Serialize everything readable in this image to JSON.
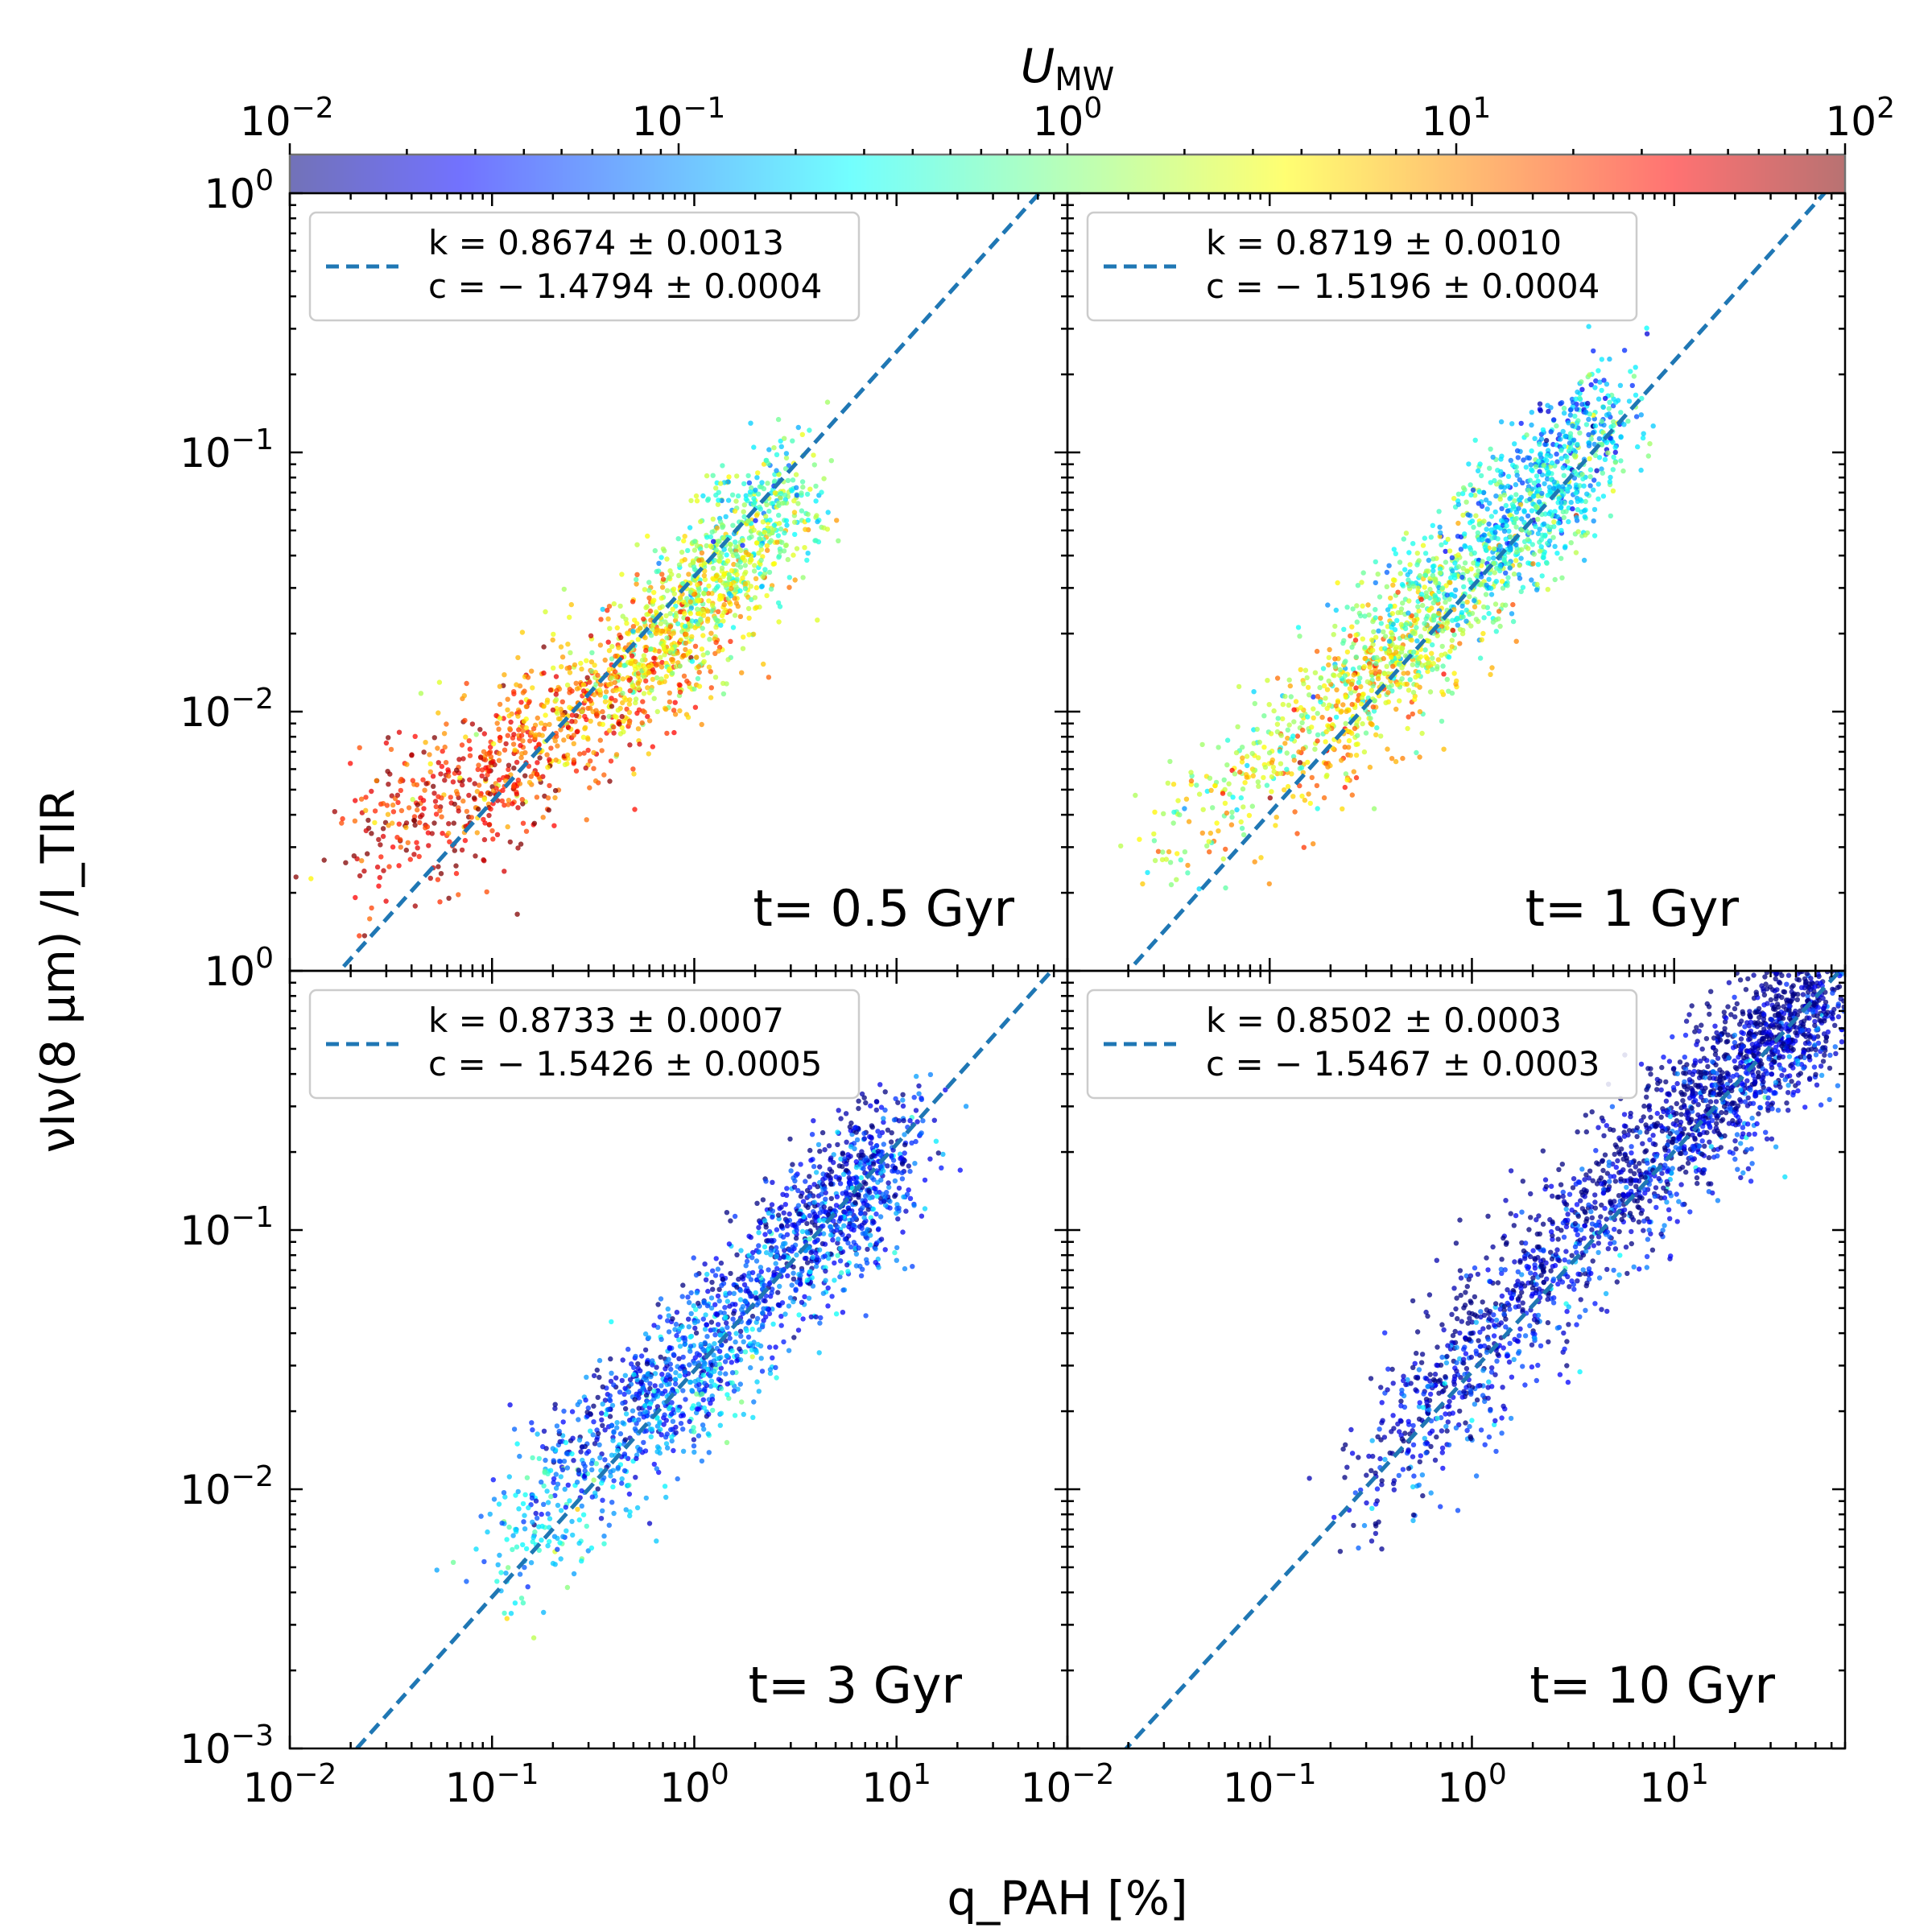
{
  "chart_data": {
    "type": "scatter",
    "layout": "2x2 grid, shared axes, log-log",
    "xlabel": "q_PAH [%]",
    "ylabel": "νIν(8 μm) /I_TIR",
    "xscale": "log",
    "yscale": "log",
    "xlim": [
      0.01,
      70
    ],
    "ylim": [
      0.001,
      1
    ],
    "xticks": [
      {
        "value": 0.01,
        "base": "10",
        "exp": "−2"
      },
      {
        "value": 0.1,
        "base": "10",
        "exp": "−1"
      },
      {
        "value": 1,
        "base": "10",
        "exp": "0"
      },
      {
        "value": 10,
        "base": "10",
        "exp": "1"
      }
    ],
    "yticks": [
      {
        "value": 0.001,
        "base": "10",
        "exp": "−3"
      },
      {
        "value": 0.01,
        "base": "10",
        "exp": "−2"
      },
      {
        "value": 0.1,
        "base": "10",
        "exp": "−1"
      },
      {
        "value": 1,
        "base": "10",
        "exp": "0"
      }
    ],
    "colorbar": {
      "label": "U_MW",
      "label_base": "U",
      "label_sub": "MW",
      "scale": "log",
      "range": [
        0.01,
        100
      ],
      "colormap": "jet",
      "ticks": [
        {
          "value": 0.01,
          "base": "10",
          "exp": "−2"
        },
        {
          "value": 0.1,
          "base": "10",
          "exp": "−1"
        },
        {
          "value": 1,
          "base": "10",
          "exp": "0"
        },
        {
          "value": 10,
          "base": "10",
          "exp": "1"
        },
        {
          "value": 100,
          "base": "10",
          "exp": "2"
        }
      ]
    },
    "fit_line_color": "#1f77b4",
    "legend_location": "upper-left",
    "panels": [
      {
        "id": "p1",
        "time_label": "t= 0.5 Gyr",
        "fit": {
          "k": 0.8674,
          "c": -1.4794,
          "k_text": "k = 0.8674 ± 0.0013",
          "c_text": "c = − 1.4794 ± 0.0004"
        },
        "cloud": [
          [
            0.02,
            0.003,
            50
          ],
          [
            0.1,
            0.006,
            20
          ],
          [
            0.4,
            0.012,
            8
          ],
          [
            1.0,
            0.025,
            2
          ],
          [
            3.0,
            0.07,
            0.6
          ]
        ],
        "spread": 0.22,
        "n_points": 1800
      },
      {
        "id": "p2",
        "time_label": "t= 1 Gyr",
        "fit": {
          "k": 0.8719,
          "c": -1.5196,
          "k_text": "k = 0.8719 ± 0.0010",
          "c_text": "c = − 1.5196 ± 0.0004"
        },
        "cloud": [
          [
            0.03,
            0.003,
            2
          ],
          [
            0.2,
            0.01,
            3
          ],
          [
            0.5,
            0.02,
            2
          ],
          [
            1.5,
            0.05,
            0.3
          ],
          [
            4.5,
            0.13,
            0.2
          ]
        ],
        "spread": 0.22,
        "n_points": 1800
      },
      {
        "id": "p3",
        "time_label": "t= 3 Gyr",
        "fit": {
          "k": 0.8733,
          "c": -1.5426,
          "k_text": "k = 0.8733 ± 0.0007",
          "c_text": "c = − 1.5426 ± 0.0005"
        },
        "cloud": [
          [
            0.1,
            0.005,
            0.5
          ],
          [
            0.35,
            0.015,
            0.05
          ],
          [
            1.0,
            0.03,
            0.08
          ],
          [
            4.0,
            0.1,
            0.04
          ],
          [
            10.0,
            0.2,
            0.03
          ]
        ],
        "spread": 0.22,
        "n_points": 1800
      },
      {
        "id": "p4",
        "time_label": "t= 10 Gyr",
        "fit": {
          "k": 0.8502,
          "c": -1.5467,
          "k_text": "k = 0.8502 ± 0.0003",
          "c_text": "c = − 1.5467 ± 0.0003"
        },
        "cloud": [
          [
            0.3,
            0.01,
            0.03
          ],
          [
            1.0,
            0.035,
            0.02
          ],
          [
            5.0,
            0.13,
            0.02
          ],
          [
            20.0,
            0.4,
            0.015
          ],
          [
            60.0,
            0.85,
            0.015
          ]
        ],
        "spread": 0.22,
        "n_points": 2200
      }
    ]
  }
}
